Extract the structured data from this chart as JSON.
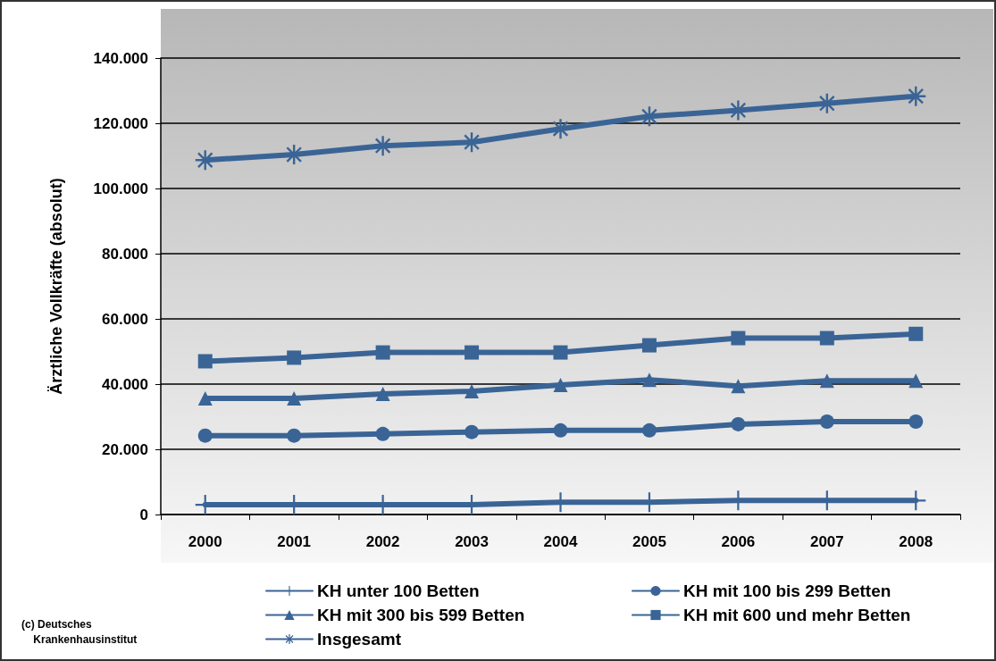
{
  "chart_data": {
    "type": "line",
    "ylabel": "Ärztliche Vollkräfte (absolut)",
    "categories": [
      "2000",
      "2001",
      "2002",
      "2003",
      "2004",
      "2005",
      "2006",
      "2007",
      "2008"
    ],
    "series": [
      {
        "name": "KH unter 100 Betten",
        "color": "#3a6496",
        "marker": "cross",
        "values": [
          3000,
          3000,
          3000,
          3000,
          3800,
          3800,
          4300,
          4300,
          4300
        ]
      },
      {
        "name": "KH mit 100 bis 299 Betten",
        "color": "#3a6496",
        "marker": "circle",
        "values": [
          24200,
          24200,
          24700,
          25300,
          25800,
          25800,
          27700,
          28500,
          28500
        ]
      },
      {
        "name": "KH mit 300 bis 599 Betten",
        "color": "#3a6496",
        "marker": "triangle",
        "values": [
          35600,
          35600,
          37000,
          37800,
          39700,
          41300,
          39400,
          41000,
          41000
        ]
      },
      {
        "name": "KH mit 600 und mehr Betten",
        "color": "#3a6496",
        "marker": "square",
        "values": [
          47000,
          48100,
          49700,
          49700,
          49700,
          51900,
          54100,
          54100,
          55400
        ]
      },
      {
        "name": "Insgesamt",
        "color": "#3a6496",
        "marker": "star",
        "values": [
          108700,
          110400,
          113100,
          114200,
          118300,
          122100,
          124000,
          126100,
          128300
        ]
      }
    ],
    "ylim": [
      0,
      140000
    ],
    "yticks": [
      {
        "value": 0,
        "label": "0"
      },
      {
        "value": 20000,
        "label": "20.000"
      },
      {
        "value": 40000,
        "label": "40.000"
      },
      {
        "value": 60000,
        "label": "60.000"
      },
      {
        "value": 80000,
        "label": "80.000"
      },
      {
        "value": 100000,
        "label": "100.000"
      },
      {
        "value": 120000,
        "label": "120.000"
      },
      {
        "value": 140000,
        "label": "140.000"
      }
    ],
    "grid": "y",
    "legend": "bottom",
    "line_style": "solid",
    "annotations": [
      "(c) Deutsches\n    Krankenhausinstitut"
    ]
  }
}
